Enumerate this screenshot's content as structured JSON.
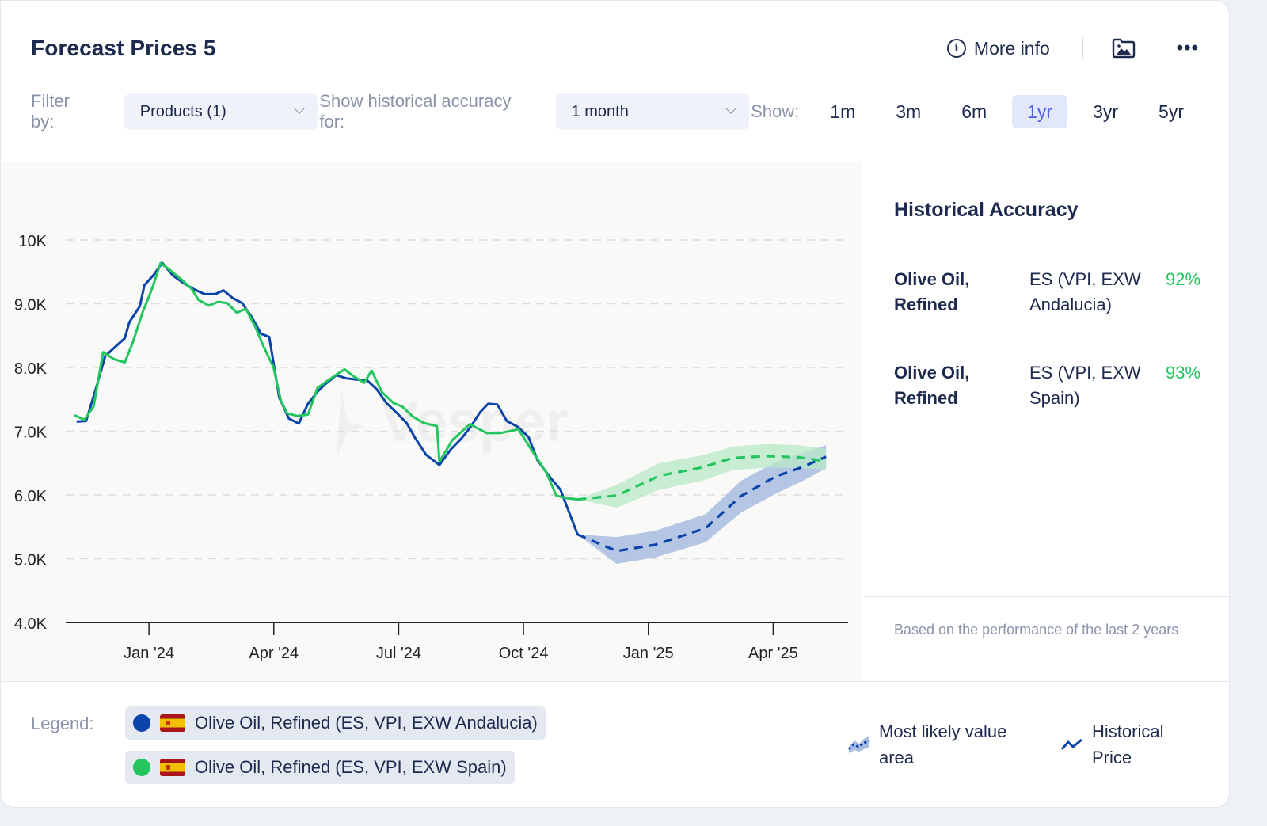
{
  "header": {
    "title": "Forecast Prices 5",
    "more_info_label": "More info",
    "info_icon": "info-icon",
    "export_icon": "image-folder-icon",
    "menu_icon": "more-horizontal-icon"
  },
  "filters": {
    "filter_by_label": "Filter by:",
    "products_select": "Products (1)",
    "accuracy_label": "Show historical accuracy for:",
    "accuracy_select": "1 month",
    "show_label": "Show:",
    "ranges": [
      "1m",
      "3m",
      "6m",
      "1yr",
      "3yr",
      "5yr"
    ],
    "active_range": "1yr"
  },
  "accuracy_panel": {
    "title": "Historical Accuracy",
    "rows": [
      {
        "product": "Olive Oil, Refined",
        "region": "ES (VPI, EXW Andalucia)",
        "accuracy": "92%"
      },
      {
        "product": "Olive Oil, Refined",
        "region": "ES (VPI, EXW Spain)",
        "accuracy": "93%"
      }
    ],
    "note": "Based on the performance of the last 2 years"
  },
  "legend": {
    "label": "Legend:",
    "series": [
      {
        "name": "Olive Oil, Refined (ES, VPI, EXW Andalucia)",
        "color": "#0b44a8",
        "flag": "spain-flag-icon"
      },
      {
        "name": "Olive Oil, Refined (ES, VPI, EXW Spain)",
        "color": "#22c55e",
        "flag": "spain-flag-icon"
      }
    ],
    "keys": [
      {
        "label": "Most likely value area",
        "icon": "forecast-area-icon"
      },
      {
        "label": "Historical Price",
        "icon": "historical-line-icon"
      }
    ]
  },
  "watermark": "Vesper",
  "colors": {
    "accent": "#4f5fe0",
    "blue_series": "#0b44a8",
    "green_series": "#22c55e",
    "blue_band": "#a9bde2",
    "green_band": "#b8e8c6",
    "accuracy_text": "#22c55e"
  },
  "chart_data": {
    "type": "line",
    "title": "",
    "xlabel": "",
    "ylabel": "",
    "x_unit": "months since Jan 2024",
    "xlim": [
      -2.0,
      16.8
    ],
    "ylim": [
      4000,
      10000
    ],
    "yticks": [
      4000,
      5000,
      6000,
      7000,
      8000,
      9000,
      10000
    ],
    "ytick_labels": [
      "4.0K",
      "5.0K",
      "6.0K",
      "7.0K",
      "8.0K",
      "9.0K",
      "10K"
    ],
    "xticks": [
      0,
      3,
      6,
      9,
      12,
      15
    ],
    "xtick_labels": [
      "Jan '24",
      "Apr '24",
      "Jul '24",
      "Oct '24",
      "Jan '25",
      "Apr '25"
    ],
    "grid": true,
    "legend_position": "bottom",
    "series": [
      {
        "name": "Olive Oil, Refined (ES, VPI, EXW Andalucia)",
        "color": "#0b44a8",
        "historical": {
          "x": [
            -1.74,
            -1.51,
            -1.27,
            -1.05,
            -0.58,
            -0.47,
            -0.22,
            -0.11,
            0.11,
            0.32,
            0.58,
            0.84,
            1.1,
            1.34,
            1.59,
            1.79,
            2.01,
            2.24,
            2.48,
            2.69,
            2.89,
            3.13,
            3.36,
            3.6,
            3.82,
            4.05,
            4.24,
            4.5,
            4.74,
            4.98,
            5.24,
            5.47,
            5.71,
            5.95,
            6.19,
            6.4,
            6.66,
            6.98,
            7.26,
            7.5,
            7.72,
            7.96,
            8.15,
            8.37,
            8.6,
            8.86,
            9.12,
            9.34,
            9.6,
            9.89,
            10.3
          ],
          "y": [
            7150,
            7160,
            7680,
            8180,
            8460,
            8710,
            8960,
            9290,
            9450,
            9640,
            9440,
            9320,
            9220,
            9150,
            9150,
            9210,
            9090,
            9010,
            8780,
            8530,
            8480,
            7530,
            7200,
            7120,
            7430,
            7620,
            7740,
            7880,
            7830,
            7810,
            7800,
            7660,
            7440,
            7290,
            7130,
            6890,
            6630,
            6470,
            6720,
            6880,
            7060,
            7300,
            7430,
            7420,
            7160,
            7070,
            6910,
            6540,
            6310,
            6080,
            5380
          ]
        },
        "forecast": {
          "x": [
            10.3,
            11.24,
            12.17,
            13.38,
            14.22,
            15.06,
            15.71,
            16.27
          ],
          "y": [
            5380,
            5120,
            5220,
            5480,
            5980,
            6290,
            6440,
            6600
          ],
          "lower": [
            5380,
            4920,
            5020,
            5260,
            5720,
            6020,
            6220,
            6420
          ],
          "upper": [
            5380,
            5340,
            5440,
            5700,
            6220,
            6520,
            6660,
            6780
          ]
        }
      },
      {
        "name": "Olive Oil, Refined (ES, VPI, EXW Spain)",
        "color": "#22c55e",
        "historical": {
          "x": [
            -1.79,
            -1.55,
            -1.33,
            -1.1,
            -0.84,
            -0.58,
            -0.39,
            -0.15,
            0.06,
            0.28,
            0.5,
            0.78,
            1.03,
            1.19,
            1.44,
            1.66,
            1.88,
            2.11,
            2.33,
            2.56,
            2.76,
            2.99,
            3.17,
            3.32,
            3.56,
            3.82,
            4.05,
            4.29,
            4.51,
            4.7,
            4.92,
            5.17,
            5.35,
            5.6,
            5.88,
            6.08,
            6.34,
            6.6,
            6.92,
            6.98,
            7.29,
            7.71,
            8.12,
            8.43,
            8.88,
            9.14,
            9.55,
            9.79,
            10.04,
            10.3
          ],
          "y": [
            7250,
            7180,
            7390,
            8240,
            8130,
            8080,
            8390,
            8870,
            9210,
            9640,
            9530,
            9380,
            9230,
            9060,
            8970,
            9030,
            9010,
            8860,
            8920,
            8630,
            8320,
            8010,
            7480,
            7280,
            7240,
            7260,
            7680,
            7790,
            7890,
            7970,
            7860,
            7760,
            7950,
            7610,
            7440,
            7390,
            7230,
            7130,
            7080,
            6520,
            6860,
            7110,
            6970,
            6970,
            7030,
            6760,
            6350,
            5990,
            5950,
            5930
          ]
        },
        "forecast": {
          "x": [
            10.3,
            11.24,
            12.26,
            13.28,
            14.03,
            14.87,
            15.62,
            16.27
          ],
          "y": [
            5930,
            5990,
            6300,
            6430,
            6580,
            6610,
            6590,
            6530
          ],
          "lower": [
            5930,
            5800,
            6080,
            6220,
            6390,
            6430,
            6420,
            6400
          ],
          "upper": [
            5930,
            6160,
            6500,
            6620,
            6760,
            6800,
            6780,
            6720
          ]
        }
      }
    ]
  }
}
